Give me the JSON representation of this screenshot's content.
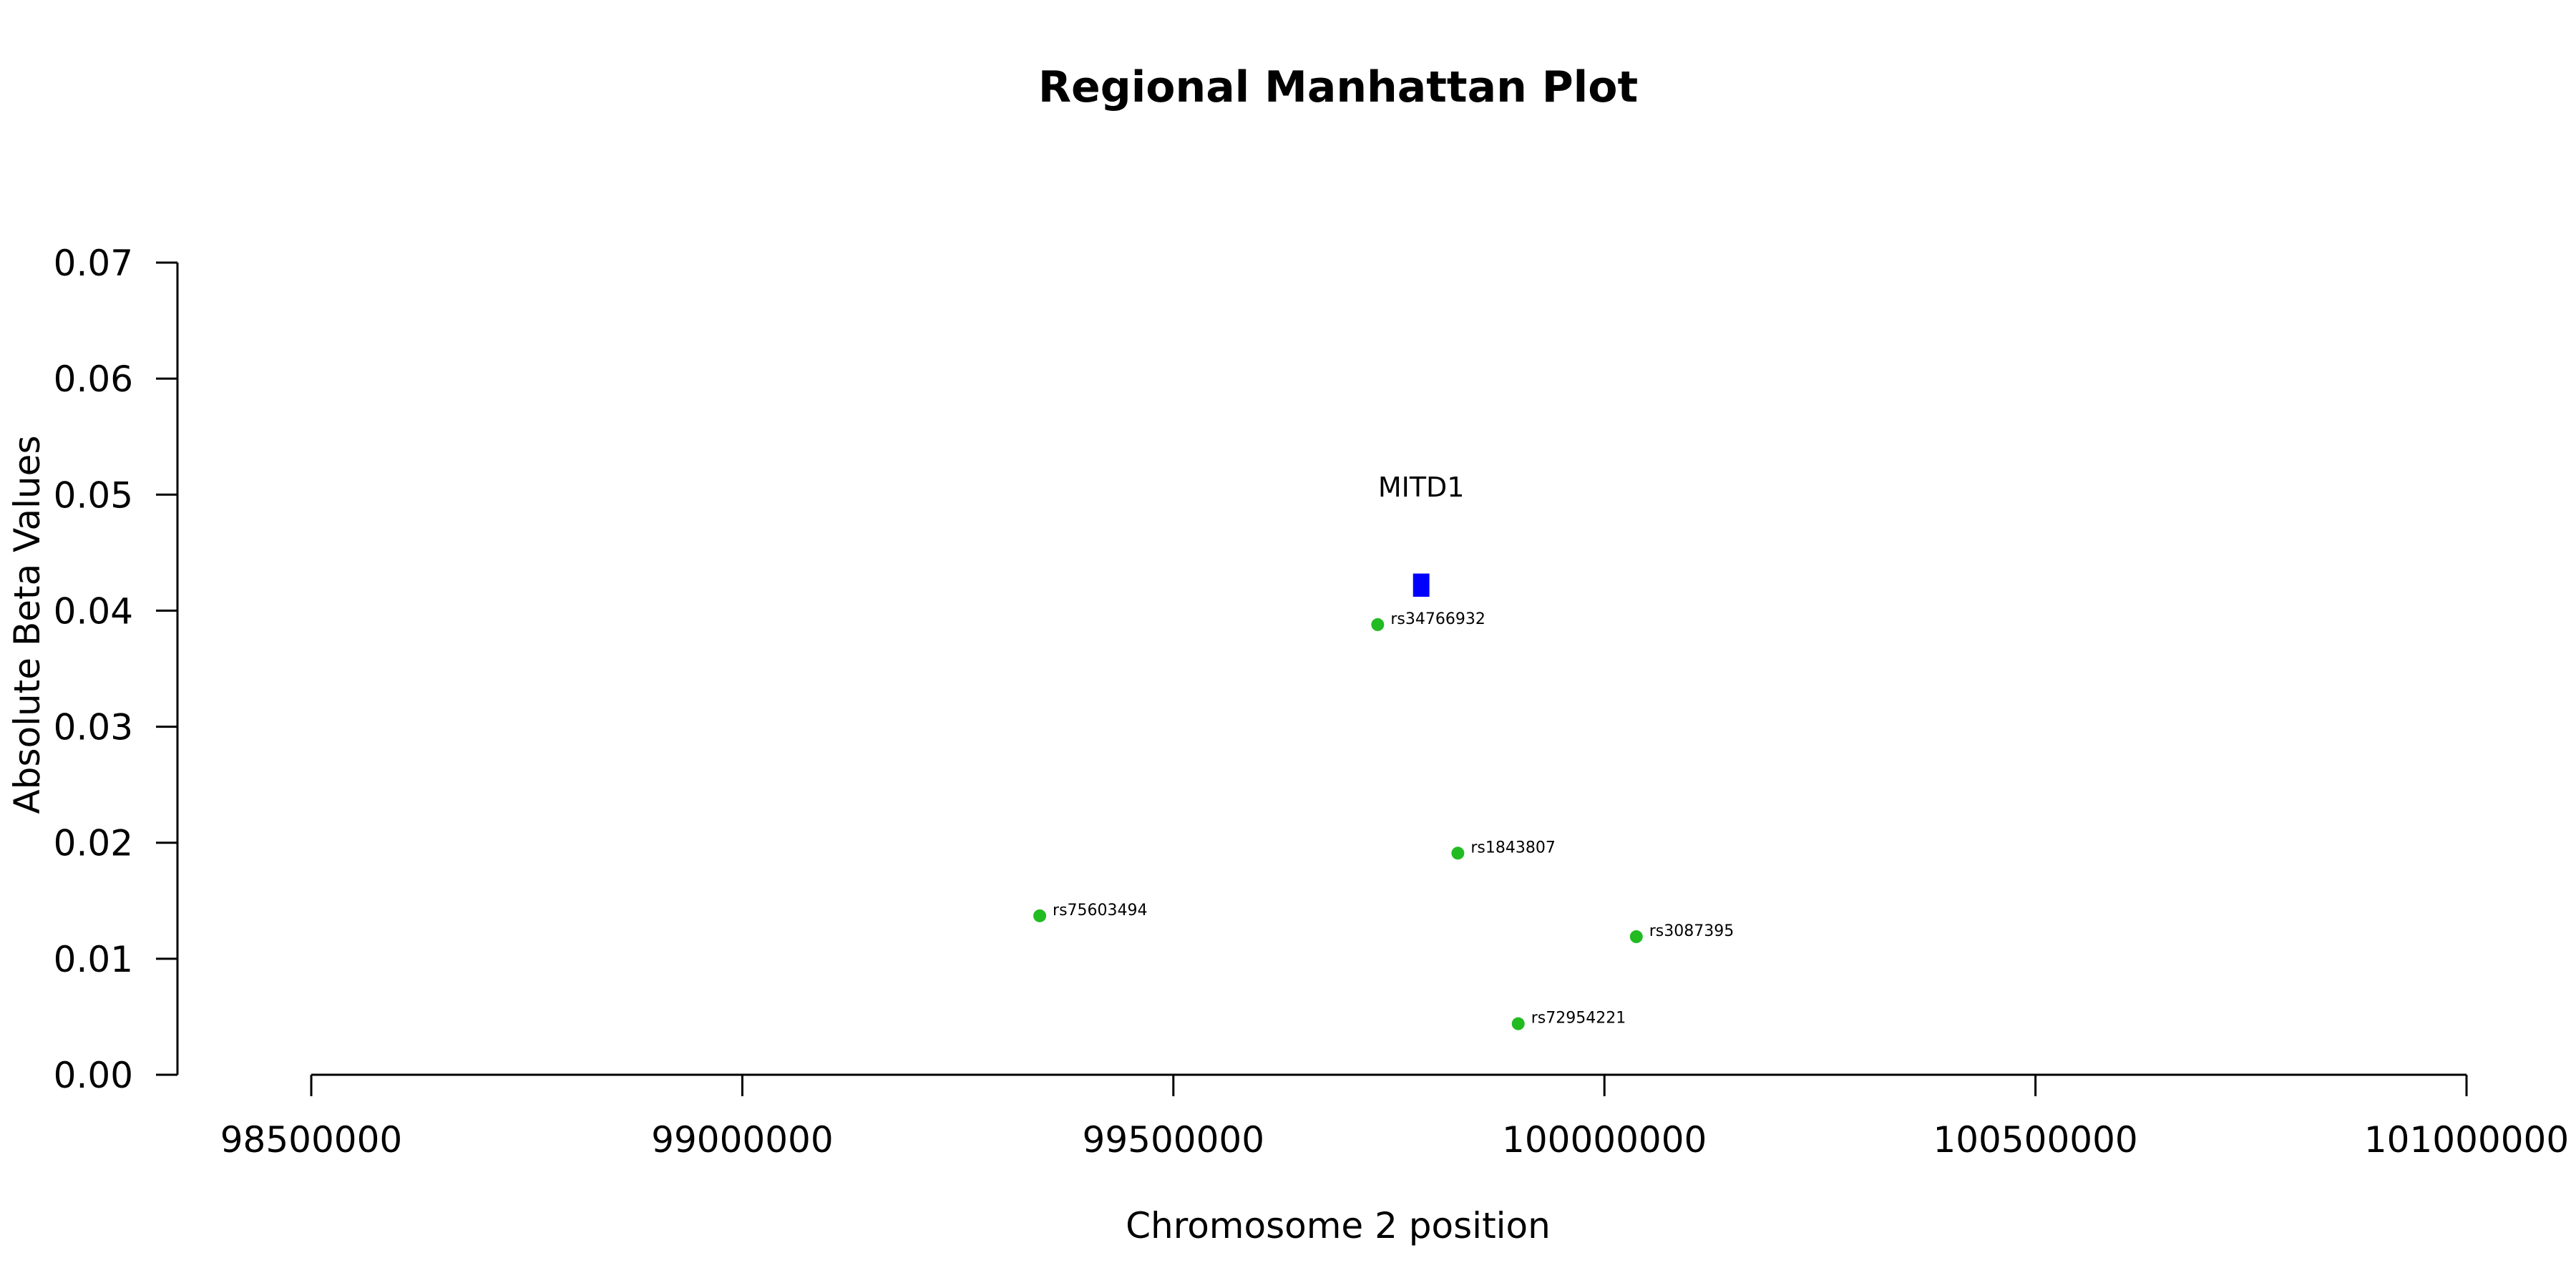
{
  "chart_data": {
    "type": "scatter",
    "title": "Regional Manhattan Plot",
    "xlabel": "Chromosome 2 position",
    "ylabel": "Absolute Beta Values",
    "xlim": [
      98500000,
      101000000
    ],
    "ylim": [
      0,
      0.07
    ],
    "x_ticks": [
      98500000,
      99000000,
      99500000,
      100000000,
      100500000,
      101000000
    ],
    "x_tick_labels": [
      "98500000",
      "99000000",
      "99500000",
      "100000000",
      "100500000",
      "101000000"
    ],
    "y_ticks": [
      0,
      0.01,
      0.02,
      0.03,
      0.04,
      0.05,
      0.06,
      0.07
    ],
    "y_tick_labels": [
      "0.00",
      "0.01",
      "0.02",
      "0.03",
      "0.04",
      "0.05",
      "0.06",
      "0.07"
    ],
    "grid": false,
    "point_color": "#22bb22",
    "points": [
      {
        "label": "rs75603494",
        "x": 99345000,
        "y": 0.0137
      },
      {
        "label": "rs34766932",
        "x": 99737000,
        "y": 0.0388
      },
      {
        "label": "rs1843807",
        "x": 99830000,
        "y": 0.0191
      },
      {
        "label": "rs72954221",
        "x": 99900000,
        "y": 0.0044
      },
      {
        "label": "rs3087395",
        "x": 100037000,
        "y": 0.0119
      }
    ],
    "gene": {
      "name": "MITD1",
      "start": 99778000,
      "end": 99797000,
      "y_low": 0.0412,
      "y_high": 0.0432,
      "color": "#0000ff"
    }
  }
}
